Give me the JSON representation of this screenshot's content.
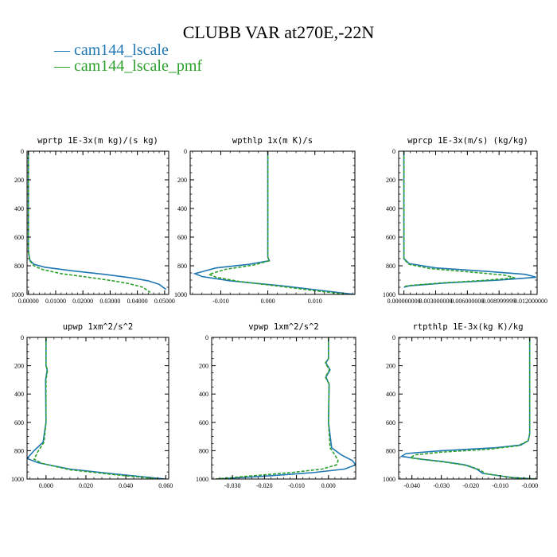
{
  "title": "CLUBB VAR at270E,-22N",
  "legend": [
    {
      "name": "cam144_lscale",
      "color": "#1f77b4",
      "dash": false
    },
    {
      "name": "cam144_lscale_pmf",
      "color": "#2ca02c",
      "dash": true
    }
  ],
  "chart_data": [
    {
      "type": "line",
      "title": "wprtp  1E-3x(m kg)/(s kg)",
      "xlim": [
        -0.0005,
        0.0515
      ],
      "ylim": [
        0,
        1000
      ],
      "y_inverted": true,
      "xticks": [
        0.0,
        0.01,
        0.02,
        0.03,
        0.04,
        0.05
      ],
      "xtick_labels": [
        "0.00000",
        "0.01000",
        "0.02000",
        "0.03000",
        "0.04000",
        "0.05000"
      ],
      "yticks": [
        0,
        200,
        400,
        600,
        800,
        1000
      ],
      "series": [
        {
          "name": "cam144_lscale",
          "x": [
            0,
            0,
            0.0005,
            0.002,
            0.006,
            0.016,
            0.028,
            0.038,
            0.044,
            0.048,
            0.0505
          ],
          "y": [
            0,
            700,
            760,
            790,
            810,
            835,
            860,
            885,
            905,
            930,
            965
          ]
        },
        {
          "name": "cam144_lscale_pmf",
          "x": [
            0,
            0,
            0.0005,
            0.002,
            0.005,
            0.012,
            0.022,
            0.031,
            0.037,
            0.042,
            0.0447
          ],
          "y": [
            0,
            700,
            765,
            800,
            825,
            855,
            880,
            905,
            925,
            950,
            985
          ]
        }
      ]
    },
    {
      "type": "line",
      "title": "wpthlp  1x(m K)/s",
      "xlim": [
        -0.0165,
        0.0185
      ],
      "ylim": [
        0,
        1000
      ],
      "y_inverted": true,
      "xticks": [
        -0.01,
        0.0,
        0.01
      ],
      "xtick_labels": [
        "-0.010",
        "0.000",
        "0.010"
      ],
      "yticks": [
        0,
        200,
        400,
        600,
        800,
        1000
      ],
      "series": [
        {
          "name": "cam144_lscale",
          "x": [
            0,
            0,
            0.0003,
            -0.004,
            -0.011,
            -0.0155,
            -0.014,
            -0.008,
            0.003,
            0.012,
            0.0185
          ],
          "y": [
            0,
            740,
            765,
            790,
            815,
            855,
            875,
            905,
            940,
            975,
            1000
          ]
        },
        {
          "name": "cam144_lscale_pmf",
          "x": [
            0,
            0,
            0.0003,
            -0.003,
            -0.009,
            -0.0125,
            -0.011,
            -0.006,
            0.003,
            0.011,
            0.017
          ],
          "y": [
            0,
            740,
            765,
            795,
            825,
            860,
            880,
            910,
            945,
            978,
            1000
          ]
        }
      ]
    },
    {
      "type": "line",
      "title": "wprcp  1E-3x(m/s) (kg/kg)",
      "xlim": [
        -0.0005,
        0.0126
      ],
      "ylim": [
        0,
        1000
      ],
      "y_inverted": true,
      "xticks": [
        0.0,
        0.003,
        0.006,
        0.009,
        0.012
      ],
      "xtick_labels": [
        "0.000000000",
        "0.003000000",
        "0.006000000",
        "0.008999999",
        "0.012000000"
      ],
      "yticks": [
        0,
        200,
        400,
        600,
        800,
        1000
      ],
      "series": [
        {
          "name": "cam144_lscale",
          "x": [
            0,
            0,
            0.0005,
            0.003,
            0.008,
            0.0115,
            0.0125,
            0.009,
            0.004,
            0.0005,
            0
          ],
          "y": [
            0,
            750,
            785,
            815,
            840,
            860,
            880,
            900,
            920,
            940,
            950
          ]
        },
        {
          "name": "cam144_lscale_pmf",
          "x": [
            0,
            0,
            0.0005,
            0.0025,
            0.0065,
            0.0095,
            0.0105,
            0.0075,
            0.0035,
            0.0005,
            0
          ],
          "y": [
            0,
            755,
            790,
            820,
            845,
            865,
            885,
            902,
            920,
            938,
            945
          ]
        }
      ]
    },
    {
      "type": "line",
      "title": "upwp  1xm^2/s^2",
      "xlim": [
        -0.0095,
        0.0615
      ],
      "ylim": [
        0,
        1000
      ],
      "y_inverted": true,
      "xticks": [
        0.0,
        0.02,
        0.04,
        0.06
      ],
      "xtick_labels": [
        "0.000",
        "0.020",
        "0.040",
        "0.060"
      ],
      "yticks": [
        0,
        200,
        400,
        600,
        800,
        1000
      ],
      "series": [
        {
          "name": "cam144_lscale",
          "x": [
            0,
            0,
            0.0006,
            -0.0002,
            0,
            -0.0015,
            -0.006,
            -0.0095,
            -0.004,
            0.012,
            0.035,
            0.06
          ],
          "y": [
            0,
            200,
            230,
            300,
            600,
            740,
            800,
            855,
            885,
            930,
            965,
            1000
          ]
        },
        {
          "name": "cam144_lscale_pmf",
          "x": [
            0,
            0,
            0.0008,
            0,
            0,
            -0.001,
            -0.004,
            -0.006,
            -0.002,
            0.012,
            0.035,
            0.057
          ],
          "y": [
            0,
            200,
            230,
            300,
            600,
            740,
            805,
            860,
            890,
            935,
            970,
            1000
          ]
        }
      ]
    },
    {
      "type": "line",
      "title": "vpwp  1xm^2/s^2",
      "xlim": [
        -0.0365,
        0.0085
      ],
      "ylim": [
        0,
        1000
      ],
      "y_inverted": true,
      "xticks": [
        -0.03,
        -0.02,
        -0.01,
        0.0
      ],
      "xtick_labels": [
        "-0.030",
        "-0.020",
        "-0.010",
        "0.000"
      ],
      "yticks": [
        0,
        200,
        400,
        600,
        800,
        1000
      ],
      "series": [
        {
          "name": "cam144_lscale",
          "x": [
            0,
            0,
            -0.0008,
            0.0005,
            -0.0008,
            0.0002,
            0,
            0.001,
            0.004,
            0.0075,
            0.0085,
            0.005,
            -0.005,
            -0.02,
            -0.035
          ],
          "y": [
            0,
            150,
            180,
            230,
            280,
            330,
            600,
            780,
            830,
            870,
            900,
            930,
            955,
            980,
            1000
          ]
        },
        {
          "name": "cam144_lscale_pmf",
          "x": [
            0,
            0,
            -0.001,
            0.0003,
            -0.001,
            0.0002,
            0,
            0.0005,
            0.002,
            0.003,
            0.0025,
            -0.002,
            -0.012,
            -0.025,
            -0.0355
          ],
          "y": [
            0,
            150,
            180,
            230,
            280,
            330,
            600,
            780,
            830,
            870,
            900,
            930,
            955,
            980,
            1000
          ]
        }
      ]
    },
    {
      "type": "line",
      "title": "rtpthlp  1E-3x(kg K)/kg",
      "xlim": [
        -0.0445,
        0.0025
      ],
      "ylim": [
        0,
        1000
      ],
      "y_inverted": true,
      "xticks": [
        -0.04,
        -0.03,
        -0.02,
        -0.01,
        0.0
      ],
      "xtick_labels": [
        "-0.040",
        "-0.030",
        "-0.020",
        "-0.010",
        "-0.000"
      ],
      "yticks": [
        0,
        200,
        400,
        600,
        800,
        1000
      ],
      "series": [
        {
          "name": "cam144_lscale",
          "x": [
            0,
            0,
            -0.0005,
            -0.003,
            -0.012,
            -0.03,
            -0.042,
            -0.0435,
            -0.037,
            -0.03,
            -0.022,
            -0.018,
            -0.016,
            -0.006,
            0.0025
          ],
          "y": [
            0,
            680,
            730,
            760,
            780,
            800,
            820,
            840,
            860,
            875,
            900,
            930,
            960,
            990,
            1000
          ]
        },
        {
          "name": "cam144_lscale_pmf",
          "x": [
            0,
            0,
            -0.0005,
            -0.004,
            -0.014,
            -0.03,
            -0.039,
            -0.0405,
            -0.035,
            -0.029,
            -0.021,
            -0.017,
            -0.015,
            -0.006,
            0.0025
          ],
          "y": [
            0,
            680,
            730,
            765,
            790,
            810,
            830,
            850,
            865,
            880,
            905,
            935,
            962,
            990,
            1000
          ]
        }
      ]
    }
  ]
}
